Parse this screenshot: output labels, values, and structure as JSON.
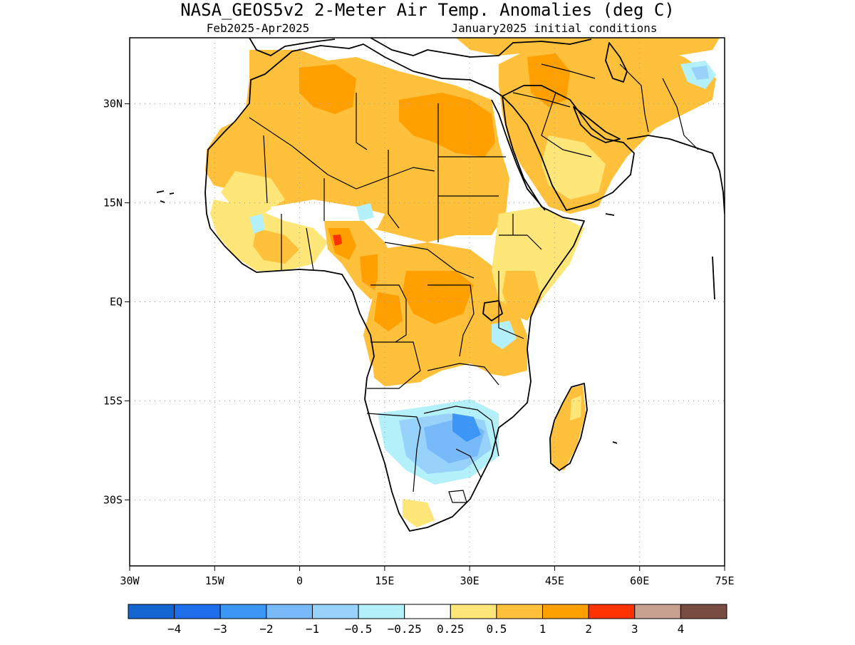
{
  "header": {
    "title": "NASA_GEOS5v2 2-Meter Air Temp. Anomalies (deg C)",
    "period": "Feb2025-Apr2025",
    "init": "January2025 initial conditions"
  },
  "map": {
    "lon_range": [
      -30,
      75
    ],
    "lat_range": [
      -40,
      40
    ],
    "x_ticks": [
      {
        "value": -30,
        "label": "30W"
      },
      {
        "value": -15,
        "label": "15W"
      },
      {
        "value": 0,
        "label": "0"
      },
      {
        "value": 15,
        "label": "15E"
      },
      {
        "value": 30,
        "label": "30E"
      },
      {
        "value": 45,
        "label": "45E"
      },
      {
        "value": 60,
        "label": "60E"
      },
      {
        "value": 75,
        "label": "75E"
      }
    ],
    "y_ticks": [
      {
        "value": 30,
        "label": "30N"
      },
      {
        "value": 15,
        "label": "15N"
      },
      {
        "value": 0,
        "label": "EQ"
      },
      {
        "value": -15,
        "label": "15S"
      },
      {
        "value": -30,
        "label": "30S"
      }
    ],
    "grid": true
  },
  "colorbar": {
    "colors": [
      "#1464d2",
      "#1e6eeb",
      "#3c96f5",
      "#78b9fa",
      "#96d2fa",
      "#b4f0fa",
      "#ffffff",
      "#ffe678",
      "#ffc03c",
      "#ffa000",
      "#ff3200",
      "#c8a090",
      "#784c40"
    ],
    "labels": [
      "−4",
      "−3",
      "−2",
      "−1",
      "−0.5",
      "−0.25",
      "0.25",
      "0.5",
      "1",
      "2",
      "3",
      "4"
    ]
  },
  "anomaly_colors": {
    "light_orange": "#ffc03c",
    "orange": "#ffa000",
    "yellow": "#ffe678",
    "red": "#ff3200",
    "light_blue": "#96d2fa",
    "blue": "#78b9fa",
    "mid_blue": "#3c96f5",
    "pale_blue": "#b4f0fa"
  }
}
